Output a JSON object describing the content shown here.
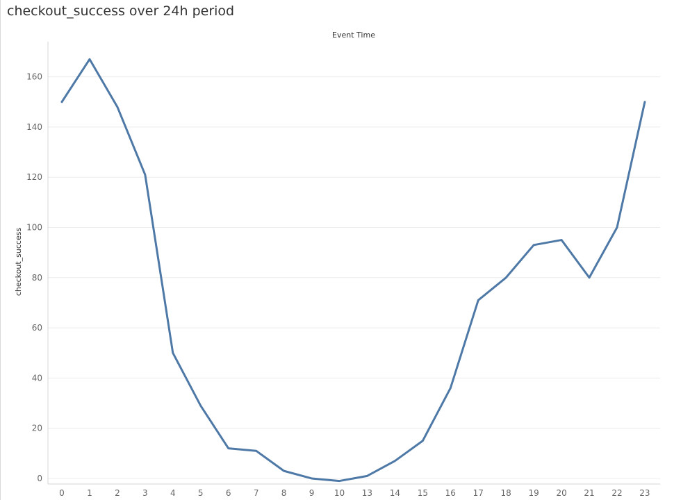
{
  "title": "checkout_success over 24h period",
  "colors": {
    "line": "#4e79a7",
    "grid": "#ececec",
    "axis": "#d4d4d4",
    "tick_text": "#666666"
  },
  "chart_data": {
    "type": "line",
    "title": "checkout_success over 24h period",
    "xlabel": "Event Time",
    "ylabel": "checkout_success",
    "categories": [
      "0",
      "1",
      "2",
      "3",
      "4",
      "5",
      "6",
      "7",
      "8",
      "9",
      "10",
      "13",
      "14",
      "15",
      "16",
      "17",
      "18",
      "19",
      "20",
      "21",
      "22",
      "23"
    ],
    "series": [
      {
        "values": [
          150,
          167,
          148,
          121,
          50,
          29,
          12,
          11,
          3,
          0,
          -1,
          1,
          7,
          15,
          36,
          71,
          80,
          93,
          95,
          80,
          100,
          150
        ]
      }
    ],
    "ylim": [
      -2.5,
      174
    ],
    "yticks": [
      0,
      20,
      40,
      60,
      80,
      100,
      120,
      140,
      160
    ],
    "grid": true,
    "legend": "none"
  }
}
